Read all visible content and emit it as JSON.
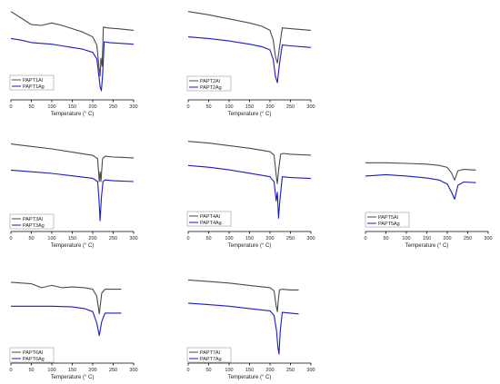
{
  "colors": {
    "line_al": "#4a4a4a",
    "line_ag": "#1a1ac8",
    "axis": "#000000",
    "text": "#222222"
  },
  "xlabel": "Temperature (° C)",
  "chart_data": [
    {
      "type": "line",
      "xlabel": "Temperature (° C)",
      "xlim": [
        0,
        300
      ],
      "x_ticks": [
        "0",
        "50",
        "100",
        "150",
        "200",
        "250",
        "300"
      ],
      "series": [
        {
          "name": "PAPT1Al",
          "x": [
            0,
            25,
            50,
            75,
            100,
            125,
            150,
            175,
            200,
            210,
            215,
            218,
            220,
            223,
            226,
            235,
            260,
            300
          ],
          "y": [
            0.97,
            0.89,
            0.81,
            0.8,
            0.83,
            0.8,
            0.76,
            0.72,
            0.66,
            0.56,
            0.3,
            0.18,
            0.4,
            0.3,
            0.78,
            0.77,
            0.76,
            0.74
          ]
        },
        {
          "name": "PAPT1Ag",
          "x": [
            0,
            25,
            50,
            75,
            100,
            125,
            150,
            175,
            200,
            210,
            215,
            218,
            221,
            224,
            228,
            240,
            270,
            300
          ],
          "y": [
            0.64,
            0.62,
            0.59,
            0.58,
            0.57,
            0.55,
            0.53,
            0.51,
            0.47,
            0.39,
            0.18,
            0.05,
            0.0,
            0.18,
            0.6,
            0.59,
            0.58,
            0.57
          ]
        }
      ]
    },
    {
      "type": "line",
      "xlabel": "Temperature (° C)",
      "xlim": [
        0,
        300
      ],
      "x_ticks": [
        "0",
        "50",
        "100",
        "150",
        "200",
        "250",
        "300"
      ],
      "series": [
        {
          "name": "PAPT2Al",
          "x": [
            0,
            50,
            100,
            150,
            180,
            200,
            208,
            213,
            218,
            224,
            230,
            250,
            300
          ],
          "y": [
            0.97,
            0.93,
            0.88,
            0.83,
            0.79,
            0.74,
            0.62,
            0.42,
            0.34,
            0.56,
            0.77,
            0.76,
            0.74
          ]
        },
        {
          "name": "PAPT2Ag",
          "x": [
            0,
            50,
            100,
            150,
            180,
            200,
            208,
            213,
            218,
            224,
            230,
            250,
            300
          ],
          "y": [
            0.66,
            0.64,
            0.61,
            0.57,
            0.54,
            0.5,
            0.38,
            0.18,
            0.1,
            0.36,
            0.56,
            0.55,
            0.53
          ]
        }
      ]
    },
    {
      "type": "line",
      "xlabel": "Temperature (° C)",
      "xlim": [
        0,
        300
      ],
      "x_ticks": [
        "0",
        "50",
        "100",
        "150",
        "200",
        "250",
        "300"
      ],
      "series": [
        {
          "name": "PAPT3Al",
          "x": [
            0,
            50,
            100,
            150,
            200,
            212,
            216,
            218,
            220,
            224,
            230,
            250,
            300
          ],
          "y": [
            0.96,
            0.93,
            0.9,
            0.86,
            0.82,
            0.78,
            0.5,
            0.62,
            0.5,
            0.78,
            0.81,
            0.8,
            0.79
          ]
        },
        {
          "name": "PAPT3Ag",
          "x": [
            0,
            50,
            100,
            150,
            200,
            212,
            215,
            218,
            221,
            225,
            230,
            250,
            300
          ],
          "y": [
            0.64,
            0.62,
            0.6,
            0.57,
            0.54,
            0.5,
            0.3,
            0.02,
            0.3,
            0.5,
            0.52,
            0.51,
            0.5
          ]
        }
      ]
    },
    {
      "type": "line",
      "xlabel": "Temperature (° C)",
      "xlim": [
        0,
        300
      ],
      "x_ticks": [
        "0",
        "50",
        "100",
        "150",
        "200",
        "250",
        "300"
      ],
      "series": [
        {
          "name": "PAPT4Al",
          "x": [
            0,
            50,
            100,
            150,
            200,
            210,
            215,
            218,
            221,
            226,
            232,
            250,
            300
          ],
          "y": [
            0.94,
            0.92,
            0.89,
            0.86,
            0.82,
            0.78,
            0.55,
            0.45,
            0.6,
            0.79,
            0.8,
            0.79,
            0.78
          ]
        },
        {
          "name": "PAPT4Ag",
          "x": [
            0,
            50,
            100,
            150,
            200,
            210,
            215,
            218,
            221,
            224,
            230,
            250,
            300
          ],
          "y": [
            0.66,
            0.64,
            0.61,
            0.57,
            0.53,
            0.47,
            0.25,
            0.35,
            0.05,
            0.25,
            0.53,
            0.52,
            0.51
          ]
        }
      ]
    },
    {
      "type": "line",
      "xlabel": "Temperature (° C)",
      "xlim": [
        0,
        300
      ],
      "x_ticks": [
        "0",
        "50",
        "100",
        "150",
        "200",
        "250",
        "300"
      ],
      "series": [
        {
          "name": "PAPT5Al",
          "x": [
            0,
            50,
            100,
            150,
            180,
            200,
            210,
            218,
            226,
            240,
            270
          ],
          "y": [
            0.9,
            0.9,
            0.89,
            0.88,
            0.86,
            0.83,
            0.75,
            0.64,
            0.78,
            0.8,
            0.79
          ]
        },
        {
          "name": "PAPT5Ag",
          "x": [
            0,
            50,
            100,
            150,
            180,
            200,
            210,
            218,
            226,
            240,
            270
          ],
          "y": [
            0.7,
            0.72,
            0.7,
            0.67,
            0.64,
            0.58,
            0.46,
            0.35,
            0.56,
            0.61,
            0.6
          ]
        }
      ]
    },
    {
      "type": "line",
      "xlabel": "Temperature (° C)",
      "xlim": [
        0,
        300
      ],
      "x_ticks": [
        "0",
        "50",
        "100",
        "150",
        "200",
        "250",
        "300"
      ],
      "series": [
        {
          "name": "PAPT6Al",
          "x": [
            0,
            50,
            75,
            100,
            125,
            150,
            180,
            200,
            210,
            216,
            222,
            230,
            270
          ],
          "y": [
            0.93,
            0.91,
            0.86,
            0.89,
            0.86,
            0.87,
            0.86,
            0.84,
            0.75,
            0.52,
            0.79,
            0.84,
            0.84
          ]
        },
        {
          "name": "PAPT6Ag",
          "x": [
            0,
            50,
            100,
            150,
            180,
            200,
            210,
            216,
            222,
            230,
            270
          ],
          "y": [
            0.62,
            0.62,
            0.62,
            0.61,
            0.59,
            0.55,
            0.4,
            0.24,
            0.42,
            0.53,
            0.53
          ]
        }
      ]
    },
    {
      "type": "line",
      "xlabel": "Temperature (° C)",
      "xlim": [
        0,
        300
      ],
      "x_ticks": [
        "0",
        "50",
        "100",
        "150",
        "200",
        "250",
        "300"
      ],
      "series": [
        {
          "name": "PAPT7Al",
          "x": [
            0,
            50,
            100,
            150,
            200,
            210,
            215,
            218,
            220,
            223,
            230,
            250,
            270
          ],
          "y": [
            0.96,
            0.94,
            0.92,
            0.89,
            0.86,
            0.82,
            0.62,
            0.55,
            0.68,
            0.83,
            0.84,
            0.83,
            0.83
          ]
        },
        {
          "name": "PAPT7Ag",
          "x": [
            0,
            50,
            100,
            150,
            200,
            210,
            216,
            219,
            222,
            225,
            230,
            250,
            270
          ],
          "y": [
            0.66,
            0.64,
            0.62,
            0.59,
            0.56,
            0.5,
            0.3,
            0.1,
            0.0,
            0.3,
            0.54,
            0.53,
            0.52
          ]
        }
      ]
    }
  ]
}
